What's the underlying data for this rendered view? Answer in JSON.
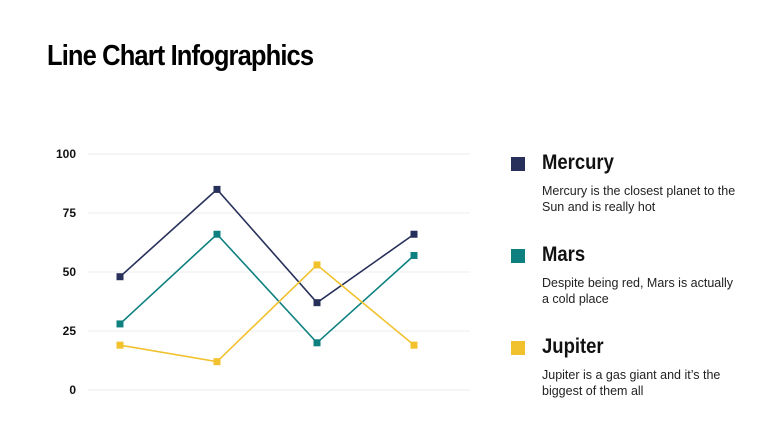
{
  "title": "Line Chart Infographics",
  "chart_data": {
    "type": "line",
    "title": "",
    "xlabel": "",
    "ylabel": "",
    "ylim": [
      0,
      100
    ],
    "yticks": [
      "0",
      "25",
      "50",
      "75",
      "100"
    ],
    "grid": true,
    "x": [
      1,
      2,
      3,
      4
    ],
    "series": [
      {
        "name": "Mercury",
        "color": "#27305a",
        "values": [
          48,
          85,
          37,
          66
        ]
      },
      {
        "name": "Mars",
        "color": "#0e8080",
        "values": [
          28,
          66,
          20,
          57
        ]
      },
      {
        "name": "Jupiter",
        "color": "#f2c12e",
        "values": [
          19,
          12,
          53,
          19
        ]
      }
    ]
  },
  "legend": [
    {
      "name": "Mercury",
      "description": "Mercury is the closest planet to the Sun and is really hot",
      "color": "#27305a"
    },
    {
      "name": "Mars",
      "description": "Despite being red, Mars is actually a cold place",
      "color": "#0e8080"
    },
    {
      "name": "Jupiter",
      "description": "Jupiter is a gas giant and it’s the biggest of them all",
      "color": "#f2c12e"
    }
  ]
}
